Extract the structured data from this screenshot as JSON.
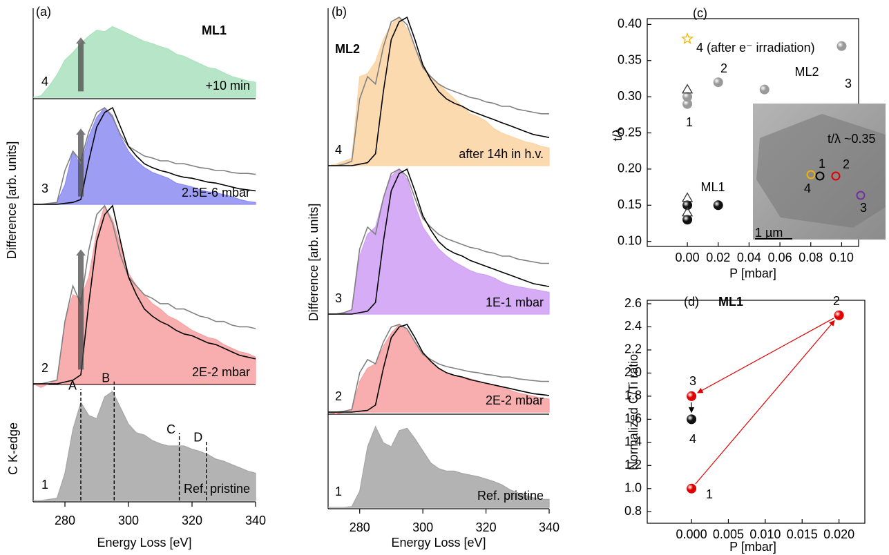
{
  "chart_data": [
    {
      "type": "area",
      "tag": "(a)",
      "title": "ML1",
      "xlabel": "Energy Loss [eV]",
      "ylabel": "Difference [arb. units]",
      "xlim": [
        270,
        340
      ],
      "xticks": [
        280,
        300,
        320,
        340
      ],
      "x": [
        270,
        272.5,
        275,
        277.5,
        280,
        282.5,
        285,
        287.5,
        290,
        292.5,
        295,
        297.5,
        300,
        302.5,
        305,
        307.5,
        310,
        312.5,
        315,
        317.5,
        320,
        322.5,
        325,
        327.5,
        330,
        332.5,
        335,
        337.5,
        340
      ],
      "overlays": [
        {
          "color": "#808080",
          "values": [
            0,
            0,
            0.01,
            0.02,
            0.35,
            0.55,
            0.45,
            0.75,
            0.95,
            1.0,
            0.9,
            0.72,
            0.6,
            0.55,
            0.5,
            0.48,
            0.45,
            0.45,
            0.42,
            0.42,
            0.4,
            0.38,
            0.37,
            0.35,
            0.35,
            0.33,
            0.32,
            0.32,
            0.31
          ]
        },
        {
          "color": "#000000",
          "values": [
            0,
            0,
            0,
            0,
            0.01,
            0.02,
            0.05,
            0.45,
            0.8,
            0.95,
            1.0,
            0.8,
            0.6,
            0.5,
            0.42,
            0.38,
            0.35,
            0.33,
            0.3,
            0.28,
            0.27,
            0.25,
            0.23,
            0.22,
            0.2,
            0.18,
            0.16,
            0.15,
            0.14
          ]
        }
      ],
      "panels": [
        {
          "label": "4",
          "label_color": "#22aa44",
          "annotation": "+10 min",
          "color": "#a9e2bd",
          "overlay": false,
          "arrow_x": 285,
          "values": [
            0,
            0.02,
            0.15,
            0.3,
            0.5,
            0.6,
            0.72,
            0.82,
            0.9,
            0.88,
            0.95,
            0.9,
            0.85,
            0.8,
            0.75,
            0.72,
            0.68,
            0.65,
            0.58,
            0.55,
            0.5,
            0.45,
            0.4,
            0.38,
            0.33,
            0.28,
            0.25,
            0.22,
            0.2
          ]
        },
        {
          "label": "3",
          "label_color": "#1a1aff",
          "annotation": "2.5E-6 mbar",
          "color": "#8c8cf2",
          "overlay": true,
          "arrow_x": 285,
          "values": [
            0,
            0,
            0,
            0.02,
            0.2,
            0.55,
            0.4,
            0.7,
            0.9,
            1.0,
            0.92,
            0.7,
            0.55,
            0.45,
            0.38,
            0.33,
            0.3,
            0.27,
            0.22,
            0.2,
            0.18,
            0.15,
            0.13,
            0.12,
            0.1,
            0.08,
            0.05,
            0.03,
            0.02
          ]
        },
        {
          "label": "2",
          "label_color": "#e00000",
          "annotation": "2E-2 mbar",
          "color": "#f7a0a0",
          "overlay": true,
          "arrow_x": 285,
          "values": [
            0,
            -0.02,
            0,
            0.02,
            0.35,
            0.5,
            0.48,
            0.6,
            0.85,
            1.0,
            0.92,
            0.78,
            0.62,
            0.55,
            0.5,
            0.45,
            0.42,
            0.38,
            0.36,
            0.33,
            0.3,
            0.28,
            0.26,
            0.25,
            0.22,
            0.2,
            0.18,
            0.17,
            0.15
          ]
        },
        {
          "label": "1",
          "label_color": "#000000",
          "annotation": "Ref. pristine",
          "side_label": "C K-edge",
          "color": "#a6a6a6",
          "overlay": false,
          "values": [
            0,
            0,
            0.01,
            0.02,
            0.25,
            0.65,
            0.9,
            0.78,
            0.75,
            0.95,
            1.0,
            0.85,
            0.7,
            0.62,
            0.6,
            0.55,
            0.52,
            0.5,
            0.5,
            0.5,
            0.47,
            0.45,
            0.42,
            0.38,
            0.36,
            0.33,
            0.3,
            0.27,
            0.25
          ],
          "markers": [
            {
              "label": "A",
              "x": 285
            },
            {
              "label": "B",
              "x": 295.5
            },
            {
              "label": "C",
              "x": 316
            },
            {
              "label": "D",
              "x": 324.5
            }
          ]
        }
      ]
    },
    {
      "type": "area",
      "tag": "(b)",
      "title": "ML2",
      "xlabel": "Energy Loss [eV]",
      "ylabel": "Difference [arb. units]",
      "xlim": [
        270,
        340
      ],
      "xticks": [
        280,
        300,
        320,
        340
      ],
      "x": [
        270,
        272.5,
        275,
        277.5,
        280,
        282.5,
        285,
        287.5,
        290,
        292.5,
        295,
        297.5,
        300,
        302.5,
        305,
        307.5,
        310,
        312.5,
        315,
        317.5,
        320,
        322.5,
        325,
        327.5,
        330,
        332.5,
        335,
        337.5,
        340
      ],
      "overlays": [
        {
          "color": "#808080",
          "values": [
            0,
            0,
            0.01,
            0.03,
            0.45,
            0.6,
            0.55,
            0.8,
            0.97,
            1.0,
            0.95,
            0.8,
            0.66,
            0.6,
            0.55,
            0.52,
            0.5,
            0.48,
            0.46,
            0.45,
            0.43,
            0.42,
            0.4,
            0.4,
            0.38,
            0.37,
            0.36,
            0.35,
            0.35
          ]
        },
        {
          "color": "#000000",
          "values": [
            0,
            0,
            0,
            0,
            0.01,
            0.02,
            0.08,
            0.5,
            0.85,
            0.97,
            1.0,
            0.85,
            0.68,
            0.58,
            0.5,
            0.45,
            0.42,
            0.4,
            0.37,
            0.35,
            0.33,
            0.31,
            0.29,
            0.27,
            0.25,
            0.23,
            0.21,
            0.2,
            0.19
          ]
        }
      ],
      "panels": [
        {
          "label": "4",
          "label_color": "#f0b000",
          "annotation": "after 14h in h.v.",
          "color": "#fbd3a2",
          "overlay": true,
          "values": [
            0,
            0.01,
            0.03,
            0.05,
            0.6,
            0.62,
            0.7,
            0.85,
            0.95,
            1.0,
            0.92,
            0.78,
            0.68,
            0.6,
            0.55,
            0.5,
            0.45,
            0.4,
            0.35,
            0.33,
            0.3,
            0.25,
            0.22,
            0.2,
            0.18,
            0.16,
            0.15,
            0.13,
            0.12
          ]
        },
        {
          "label": "3",
          "label_color": "#7030a0",
          "annotation": "1E-1 mbar",
          "color": "#cf9ef5",
          "overlay": true,
          "values": [
            0,
            0,
            0.01,
            0.02,
            0.4,
            0.55,
            0.6,
            0.8,
            0.95,
            1.0,
            0.93,
            0.75,
            0.6,
            0.52,
            0.45,
            0.4,
            0.36,
            0.33,
            0.3,
            0.28,
            0.27,
            0.25,
            0.22,
            0.2,
            0.19,
            0.18,
            0.17,
            0.16,
            0.15
          ]
        },
        {
          "label": "2",
          "label_color": "#e00000",
          "annotation": "2E-2 mbar",
          "color": "#f7a0a0",
          "overlay": true,
          "values": [
            0,
            -0.02,
            0,
            0.02,
            0.35,
            0.5,
            0.55,
            0.75,
            0.9,
            1.0,
            0.95,
            0.8,
            0.65,
            0.58,
            0.5,
            0.45,
            0.42,
            0.4,
            0.38,
            0.35,
            0.32,
            0.3,
            0.28,
            0.25,
            0.22,
            0.2,
            0.18,
            0.16,
            0.15
          ]
        },
        {
          "label": "1",
          "label_color": "#000000",
          "annotation": "Ref. pristine",
          "color": "#a6a6a6",
          "overlay": false,
          "values": [
            0,
            0,
            0,
            0.01,
            0.2,
            0.75,
            1.0,
            0.8,
            0.75,
            0.95,
            0.98,
            0.85,
            0.7,
            0.55,
            0.48,
            0.45,
            0.45,
            0.42,
            0.4,
            0.38,
            0.35,
            0.32,
            0.28,
            0.22,
            0.18,
            0.15,
            0.12,
            0.1,
            0.1
          ]
        }
      ]
    },
    {
      "type": "scatter",
      "tag": "(c)",
      "xlabel": "P [mbar]",
      "ylabel": "t/λ",
      "xlim": [
        -0.026,
        0.111
      ],
      "ylim": [
        0.093,
        0.408
      ],
      "xticks": [
        {
          "value": 0,
          "label": "0.00"
        },
        0.02,
        0.04,
        0.06,
        0.08,
        {
          "value": 0.1,
          "label": "0.10"
        }
      ],
      "yticks": [
        {
          "value": 0.1,
          "label": "0.10"
        },
        0.15,
        {
          "value": 0.2,
          "label": "0.20"
        },
        0.25,
        {
          "value": 0.3,
          "label": "0.30"
        },
        0.35,
        {
          "value": 0.4,
          "label": "0.40"
        }
      ],
      "series": [
        {
          "marker": "sphere",
          "color": "#9a9a9a",
          "x": [
            0,
            0,
            0.02,
            0.05,
            0.1
          ],
          "values": [
            0.29,
            0.3,
            0.32,
            0.31,
            0.37
          ]
        },
        {
          "marker": "sphere",
          "color": "#111111",
          "x": [
            0,
            0,
            0.02
          ],
          "values": [
            0.13,
            0.15,
            0.15
          ]
        },
        {
          "marker": "triangle",
          "color": "#333333",
          "x": [
            0,
            0,
            0
          ],
          "values": [
            0.31,
            0.16,
            0.14
          ]
        },
        {
          "marker": "star",
          "color": "#f0b400",
          "x": [
            0
          ],
          "values": [
            0.38
          ]
        }
      ],
      "annotations": [
        {
          "text": "4 (after e⁻ irradiation)",
          "color": "#f0b400"
        },
        {
          "text": "2",
          "color": "#e00000"
        },
        {
          "text": "ML2",
          "color": "#9a9a9a"
        },
        {
          "text": "3",
          "color": "#7030a0"
        },
        {
          "text": "1",
          "color": "#000000"
        },
        {
          "text": "ML1",
          "color": "#000000"
        }
      ],
      "inset": {
        "caption": "t/λ ~0.35",
        "scale": "1 µm",
        "points": [
          {
            "label": "1",
            "color": "#000000"
          },
          {
            "label": "2",
            "color": "#e00000"
          },
          {
            "label": "4",
            "color": "#f0b400"
          },
          {
            "label": "3",
            "color": "#7030a0"
          }
        ]
      }
    },
    {
      "type": "scatter",
      "tag": "(d)",
      "title": "ML1",
      "xlabel": "P [mbar]",
      "ylabel": "Normalized C/Ti ratio",
      "xlim": [
        -0.006,
        0.0235
      ],
      "ylim": [
        0.7,
        2.63
      ],
      "xticks": [
        {
          "value": 0,
          "label": "0.000"
        },
        0.005,
        {
          "value": 0.01,
          "label": "0.010"
        },
        0.015,
        {
          "value": 0.02,
          "label": "0.020"
        }
      ],
      "yticks": [
        0.8,
        {
          "value": 1,
          "label": "1.0"
        },
        1.2,
        1.4,
        1.6,
        1.8,
        {
          "value": 2,
          "label": "2.0"
        },
        2.2,
        2.4,
        2.6
      ],
      "series": [
        {
          "marker": "sphere",
          "color": "#e00000",
          "x": [
            0,
            0.02,
            0
          ],
          "values": [
            1.0,
            2.5,
            1.8
          ]
        },
        {
          "marker": "sphere",
          "color": "#111111",
          "x": [
            0
          ],
          "values": [
            1.6
          ]
        }
      ],
      "annotations": [
        {
          "text": "1",
          "color": "#000000"
        },
        {
          "text": "2",
          "color": "#e00000"
        },
        {
          "text": "3",
          "color": "#1a1aff"
        },
        {
          "text": "4",
          "color": "#22aa44"
        }
      ]
    }
  ]
}
